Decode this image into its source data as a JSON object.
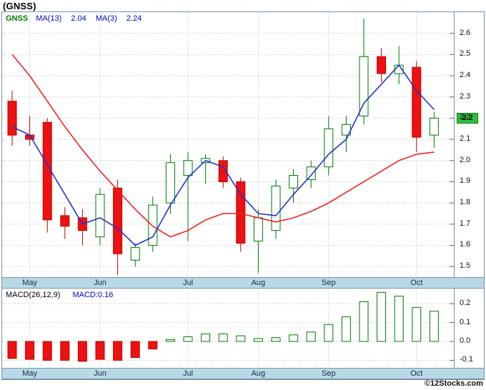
{
  "title": "(GNSS)",
  "watermark": "©12Stocks.com",
  "price_panel": {
    "legend": {
      "symbol": "GNSS",
      "ma13_label": "MA(13)",
      "ma13_value": "2.04",
      "ma3_label": "MA(3)",
      "ma3_value": "2.24"
    },
    "last_price": "2.2"
  },
  "macd_panel": {
    "legend_label": "MACD(26,12,9)",
    "legend_value": "MACD:0.16"
  },
  "colors": {
    "up": "#007700",
    "up_fill": "#ffffff",
    "down": "#bb0000",
    "down_fill": "#ee1111",
    "grid": "#aec8ae",
    "tick": "#55677a",
    "band_bg": "#b7d9e6",
    "last_price_bg": "#2fbf3f",
    "legend_green": "#007700",
    "legend_blue": "#0000cc"
  },
  "chart_data": [
    {
      "type": "candlestick",
      "title": "(GNSS) weekly price",
      "x_labels": [
        "May",
        "Jun",
        "Jul",
        "Aug",
        "Sep",
        "Oct"
      ],
      "month_positions": [
        1,
        5,
        10,
        14,
        18,
        23
      ],
      "ylim": [
        1.45,
        2.7
      ],
      "y_tick_labels": [
        "2.6",
        "2.5",
        "2.4",
        "2.3",
        "2.2",
        "2.1",
        "2.0",
        "1.9",
        "1.8",
        "1.7",
        "1.6",
        "1.5"
      ],
      "last_price": 2.2,
      "ohlc": [
        [
          2.28,
          2.33,
          2.07,
          2.12
        ],
        [
          2.12,
          2.21,
          2.07,
          2.1
        ],
        [
          2.18,
          2.2,
          1.66,
          1.72
        ],
        [
          1.74,
          1.78,
          1.63,
          1.69
        ],
        [
          1.73,
          1.77,
          1.6,
          1.67
        ],
        [
          1.64,
          1.87,
          1.6,
          1.84
        ],
        [
          1.87,
          1.91,
          1.46,
          1.56
        ],
        [
          1.53,
          1.61,
          1.5,
          1.59
        ],
        [
          1.6,
          1.83,
          1.57,
          1.79
        ],
        [
          1.8,
          2.03,
          1.75,
          1.99
        ],
        [
          1.93,
          2.04,
          1.62,
          2.0
        ],
        [
          1.99,
          2.03,
          1.89,
          2.01
        ],
        [
          2.0,
          2.02,
          1.87,
          1.9
        ],
        [
          1.9,
          1.92,
          1.57,
          1.61
        ],
        [
          1.62,
          1.77,
          1.47,
          1.73
        ],
        [
          1.67,
          1.91,
          1.63,
          1.88
        ],
        [
          1.87,
          1.96,
          1.8,
          1.93
        ],
        [
          1.91,
          2.0,
          1.87,
          1.97
        ],
        [
          1.97,
          2.21,
          1.93,
          2.15
        ],
        [
          2.12,
          2.21,
          2.04,
          2.17
        ],
        [
          2.21,
          2.67,
          2.17,
          2.49
        ],
        [
          2.49,
          2.53,
          2.37,
          2.41
        ],
        [
          2.41,
          2.54,
          2.36,
          2.45
        ],
        [
          2.44,
          2.47,
          2.04,
          2.11
        ],
        [
          2.12,
          2.23,
          2.06,
          2.2
        ]
      ],
      "series": [
        {
          "name": "MA(13)",
          "color": "#ee2222",
          "values": [
            2.5,
            2.4,
            2.28,
            2.16,
            2.05,
            1.95,
            1.86,
            1.77,
            1.69,
            1.64,
            1.67,
            1.72,
            1.75,
            1.75,
            1.73,
            1.71,
            1.73,
            1.76,
            1.8,
            1.85,
            1.9,
            1.95,
            2.0,
            2.03,
            2.04
          ]
        },
        {
          "name": "MA(3)",
          "color": "#2233cc",
          "values": [
            2.16,
            2.12,
            1.98,
            1.84,
            1.7,
            1.73,
            1.68,
            1.6,
            1.64,
            1.79,
            1.92,
            2.0,
            1.97,
            1.84,
            1.75,
            1.74,
            1.84,
            1.93,
            2.03,
            2.1,
            2.27,
            2.36,
            2.45,
            2.33,
            2.24
          ]
        }
      ]
    },
    {
      "type": "bar",
      "title": "MACD(26,12,9) histogram",
      "x_labels": [
        "May",
        "Jun",
        "Jul",
        "Aug",
        "Sep",
        "Oct"
      ],
      "month_positions": [
        1,
        5,
        10,
        14,
        18,
        23
      ],
      "ylim": [
        -0.14,
        0.28
      ],
      "y_tick_labels": [
        "0.2",
        "0.1",
        "0.0",
        "-0.1"
      ],
      "last_value": 0.16,
      "values": [
        -0.09,
        -0.095,
        -0.1,
        -0.1,
        -0.105,
        -0.095,
        -0.1,
        -0.085,
        -0.04,
        0.01,
        0.025,
        0.04,
        0.04,
        0.03,
        0.015,
        0.02,
        0.035,
        0.05,
        0.09,
        0.13,
        0.21,
        0.26,
        0.24,
        0.18,
        0.16
      ]
    }
  ]
}
